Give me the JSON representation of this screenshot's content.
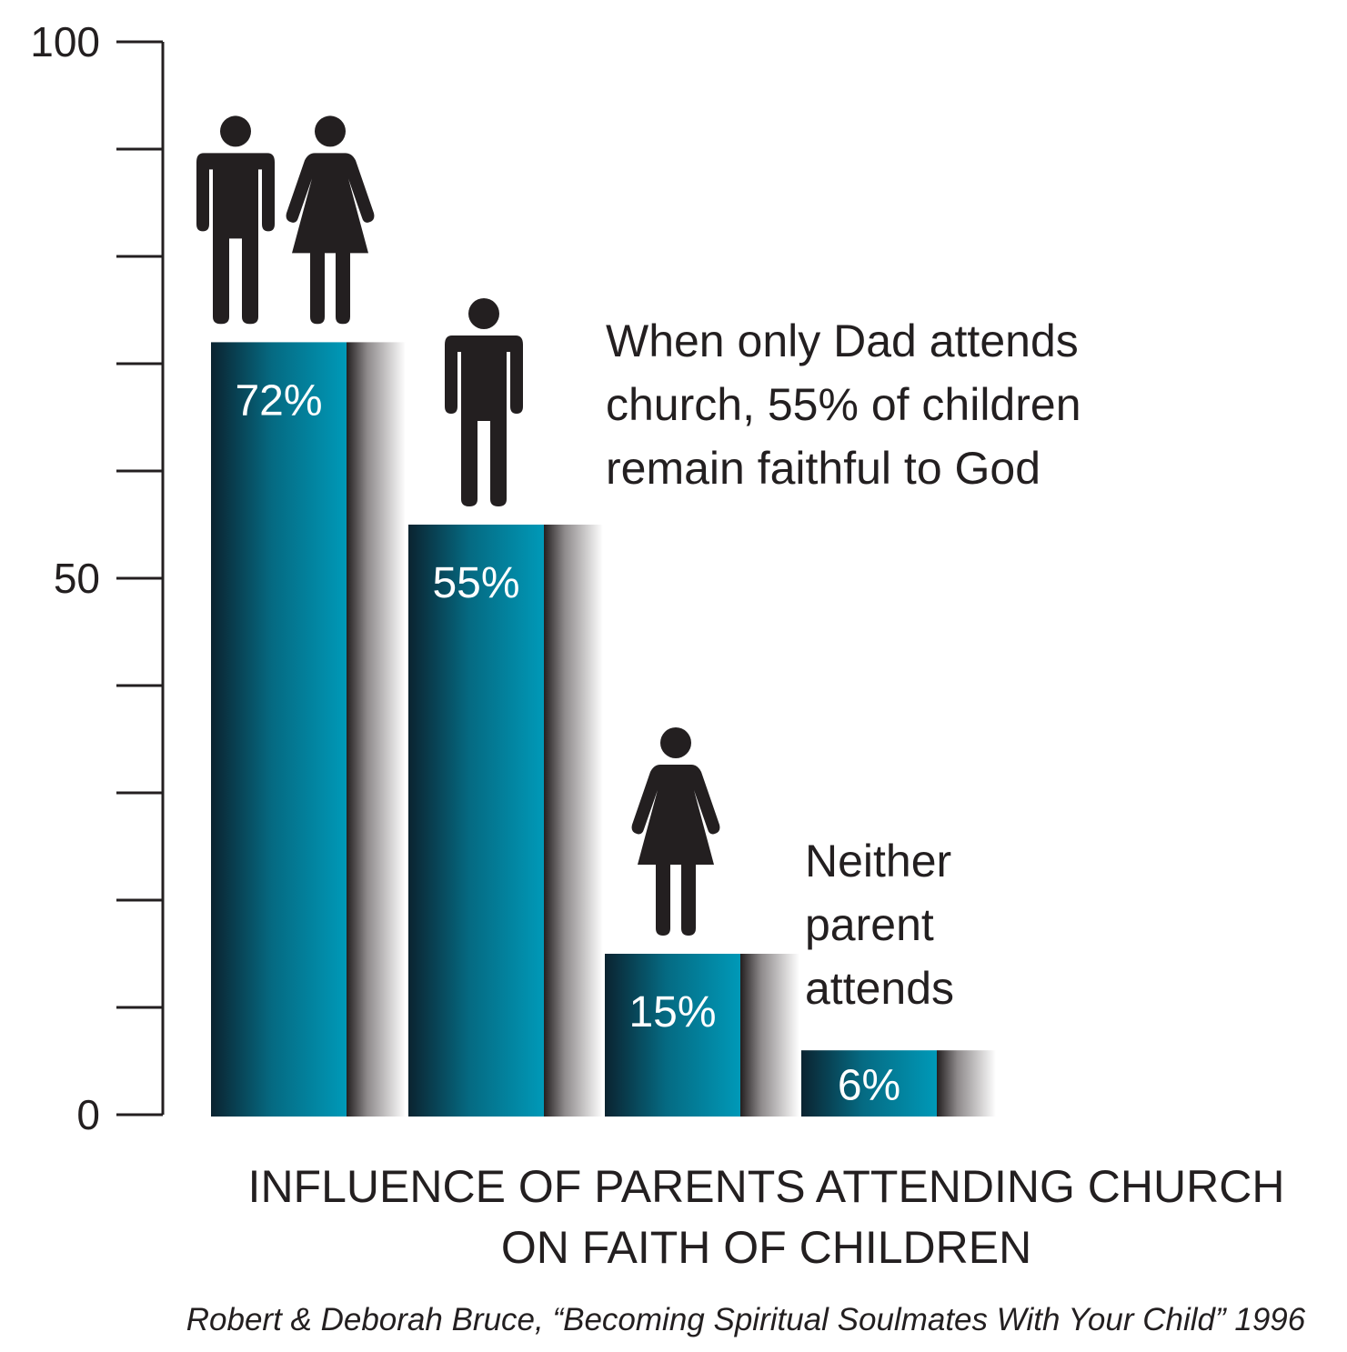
{
  "chart_data": {
    "type": "bar",
    "title": "INFLUENCE OF PARENTS ATTENDING CHURCH ON FAITH OF CHILDREN",
    "ylim": [
      0,
      100
    ],
    "y_tick_labels": [
      "0",
      "50",
      "100"
    ],
    "values": [
      72,
      55,
      15,
      6
    ],
    "value_labels": [
      "72%",
      "55%",
      "15%",
      "6%"
    ],
    "icons": [
      [
        "man-icon",
        "woman-icon"
      ],
      [
        "man-icon"
      ],
      [
        "woman-icon"
      ],
      []
    ],
    "annotations": [
      {
        "text": "When only Dad attends\nchurch, 55% of children\nremain faithful to God"
      },
      {
        "text": "Neither\nparent\nattends"
      }
    ],
    "source": "Robert & Deborah Bruce, “Becoming Spiritual Soulmates With Your Child” 1996",
    "colors": {
      "bar_dark": "#0b2330",
      "bar_light": "#0099b8",
      "ink": "#231f20"
    }
  }
}
